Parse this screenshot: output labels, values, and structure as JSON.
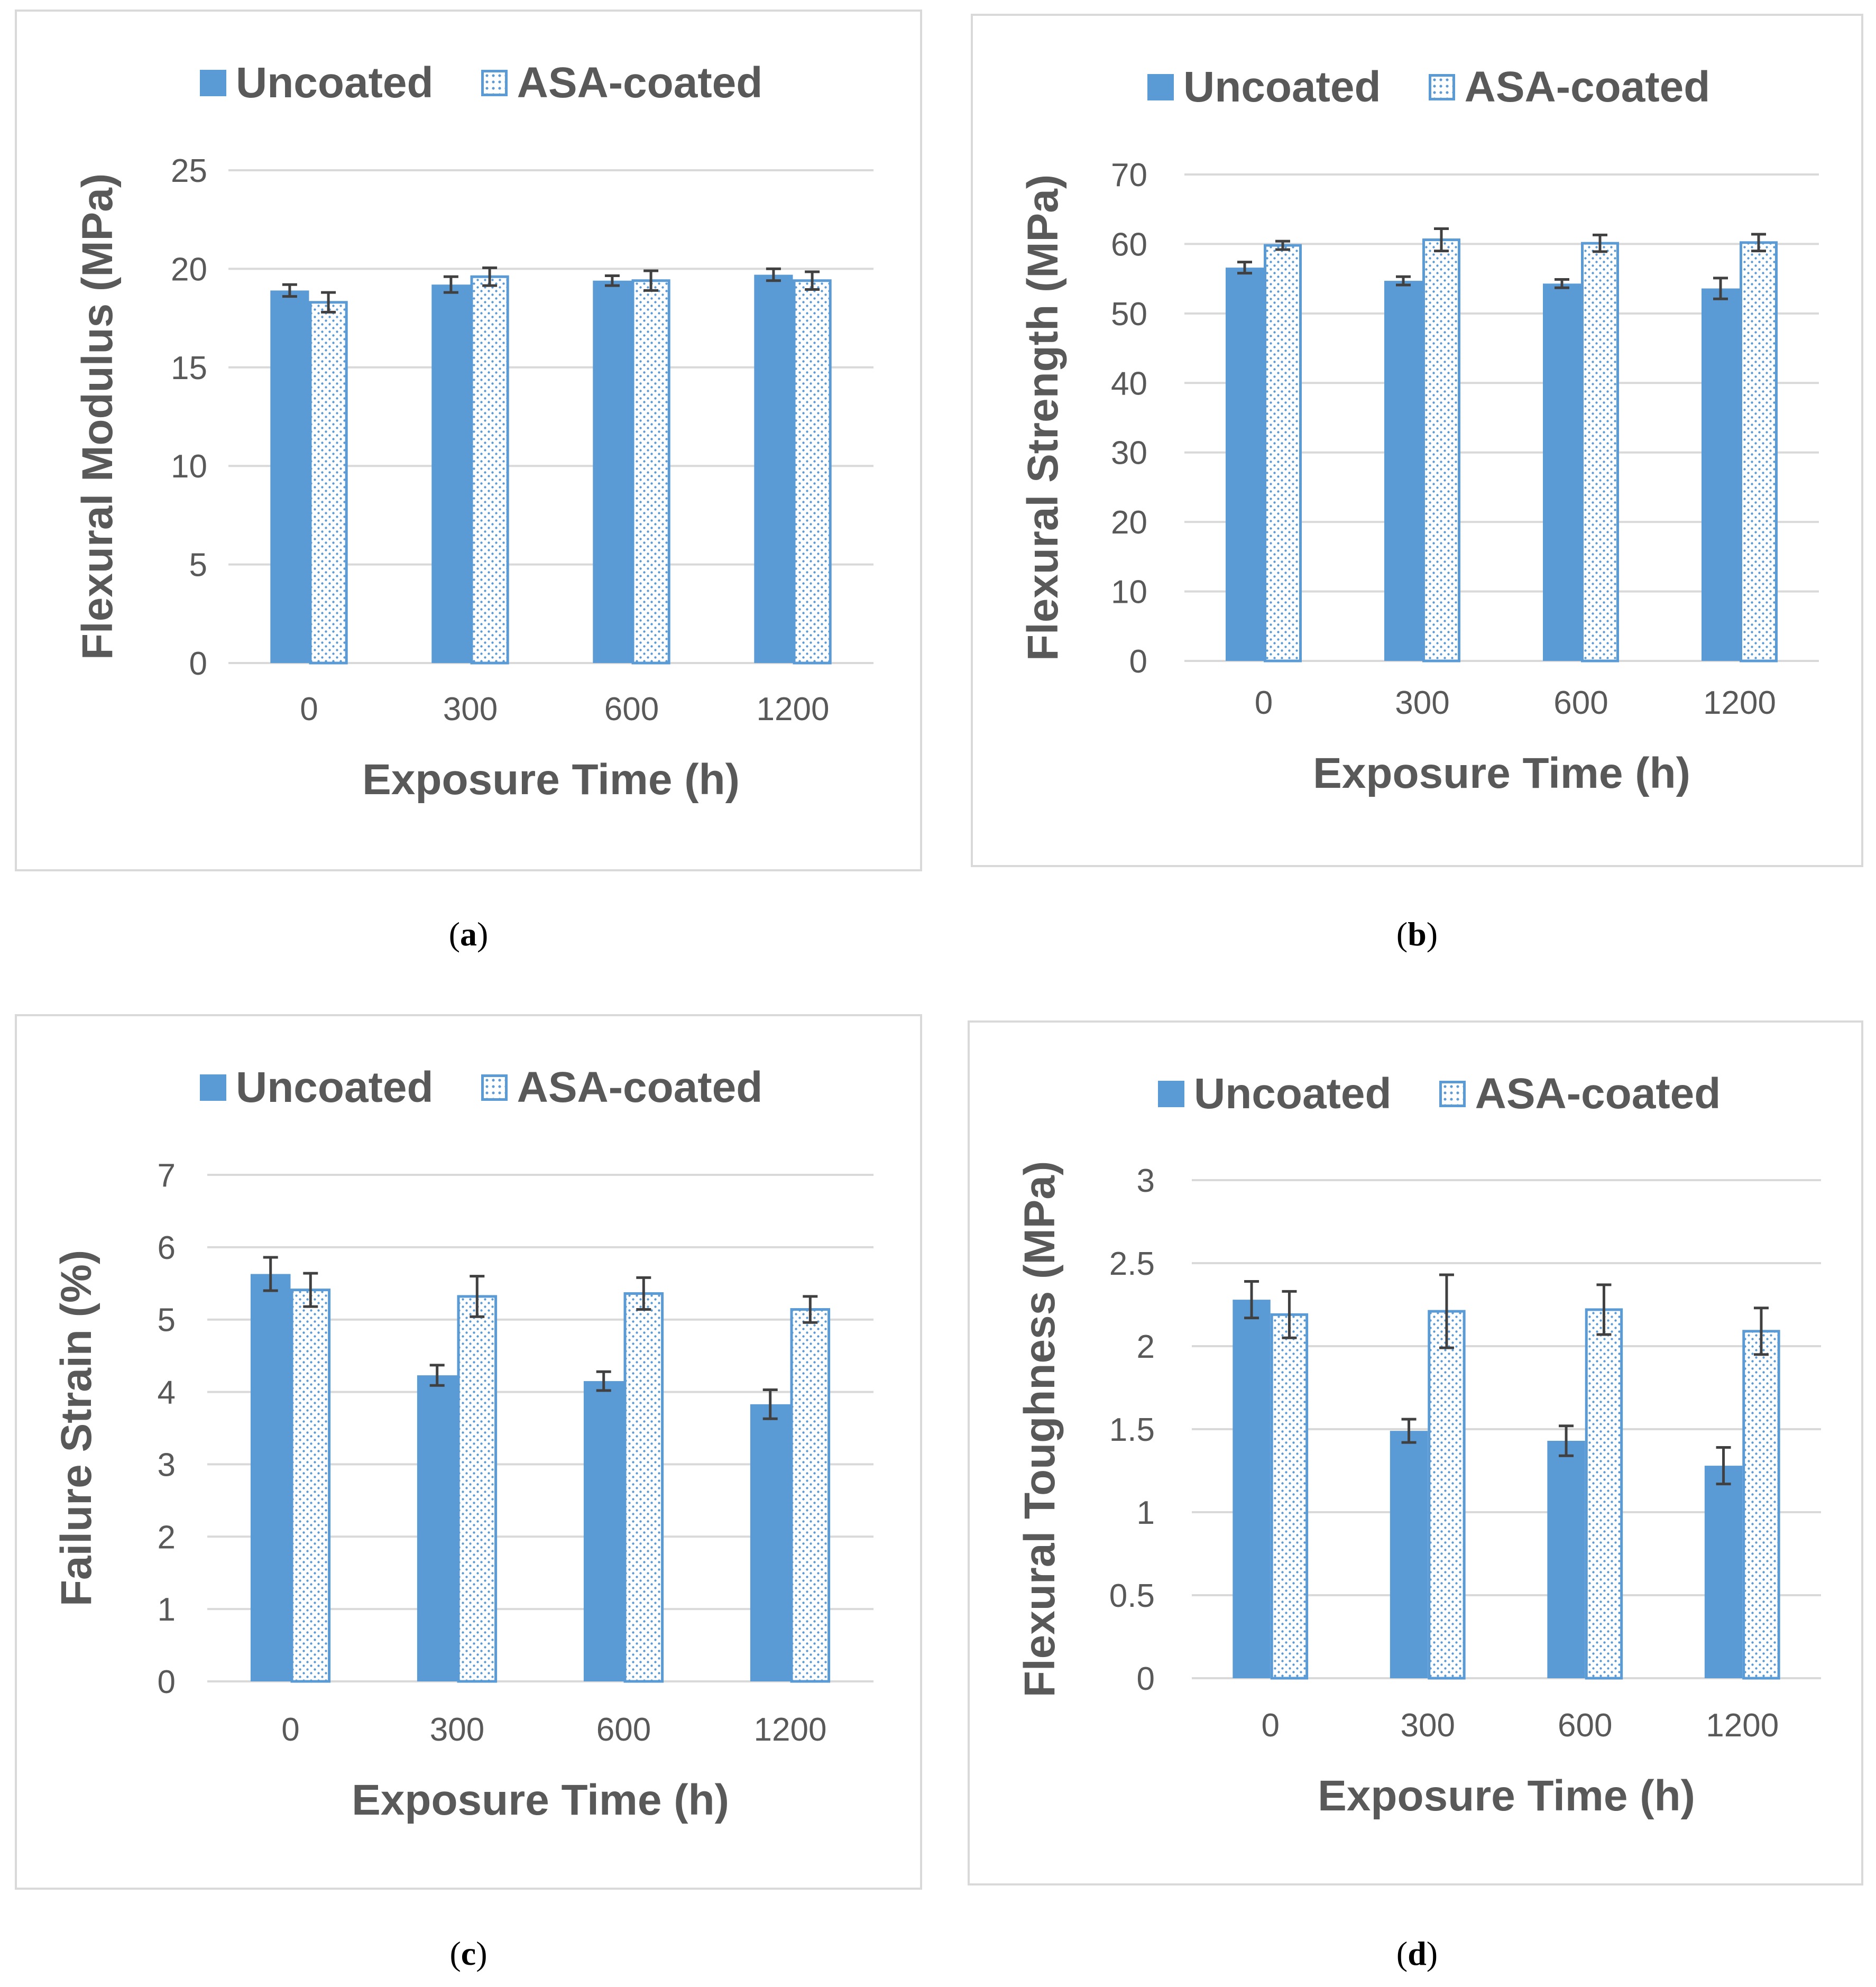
{
  "colors": {
    "uncoated": "#5b9bd5",
    "coated_border": "#5b9bd5",
    "grid": "#d9d9d9",
    "axis_text": "#595959",
    "error_bar": "#404040"
  },
  "legend": {
    "uncoated": "Uncoated",
    "coated": "ASA-coated"
  },
  "captions": {
    "a": "a",
    "b": "b",
    "c": "c",
    "d": "d"
  },
  "chart_data": [
    {
      "id": "a",
      "type": "bar",
      "title": "",
      "xlabel": "Exposure Time (h)",
      "ylabel": "Flexural Modulus (MPa)",
      "categories": [
        "0",
        "300",
        "600",
        "1200"
      ],
      "ylim": [
        0,
        25
      ],
      "yticks": [
        0,
        5,
        10,
        15,
        20,
        25
      ],
      "ytick_labels": [
        "0",
        "5",
        "10",
        "15",
        "20",
        "25"
      ],
      "grid": true,
      "legend_position": "top",
      "series": [
        {
          "name": "Uncoated",
          "values": [
            18.9,
            19.2,
            19.4,
            19.7
          ],
          "errors": [
            0.3,
            0.4,
            0.25,
            0.3
          ]
        },
        {
          "name": "ASA-coated",
          "values": [
            18.3,
            19.6,
            19.4,
            19.4
          ],
          "errors": [
            0.5,
            0.45,
            0.5,
            0.45
          ]
        }
      ]
    },
    {
      "id": "b",
      "type": "bar",
      "title": "",
      "xlabel": "Exposure Time (h)",
      "ylabel": "Flexural Strength (MPa)",
      "categories": [
        "0",
        "300",
        "600",
        "1200"
      ],
      "ylim": [
        0,
        70
      ],
      "yticks": [
        0,
        10,
        20,
        30,
        40,
        50,
        60,
        70
      ],
      "ytick_labels": [
        "0",
        "10",
        "20",
        "30",
        "40",
        "50",
        "60",
        "70"
      ],
      "grid": true,
      "legend_position": "top",
      "series": [
        {
          "name": "Uncoated",
          "values": [
            56.6,
            54.7,
            54.3,
            53.6
          ],
          "errors": [
            0.8,
            0.6,
            0.6,
            1.5
          ]
        },
        {
          "name": "ASA-coated",
          "values": [
            59.8,
            60.6,
            60.1,
            60.2
          ],
          "errors": [
            0.6,
            1.6,
            1.2,
            1.2
          ]
        }
      ]
    },
    {
      "id": "c",
      "type": "bar",
      "title": "",
      "xlabel": "Exposure Time (h)",
      "ylabel": "Failure Strain (%)",
      "categories": [
        "0",
        "300",
        "600",
        "1200"
      ],
      "ylim": [
        0,
        7
      ],
      "yticks": [
        0,
        1,
        2,
        3,
        4,
        5,
        6,
        7
      ],
      "ytick_labels": [
        "0",
        "1",
        "2",
        "3",
        "4",
        "5",
        "6",
        "7"
      ],
      "grid": true,
      "legend_position": "top",
      "series": [
        {
          "name": "Uncoated",
          "values": [
            5.63,
            4.23,
            4.15,
            3.83
          ],
          "errors": [
            0.23,
            0.14,
            0.13,
            0.2
          ]
        },
        {
          "name": "ASA-coated",
          "values": [
            5.41,
            5.32,
            5.36,
            5.14
          ],
          "errors": [
            0.23,
            0.28,
            0.22,
            0.18
          ]
        }
      ]
    },
    {
      "id": "d",
      "type": "bar",
      "title": "",
      "xlabel": "Exposure Time (h)",
      "ylabel": "Flexural Toughness (MPa)",
      "categories": [
        "0",
        "300",
        "600",
        "1200"
      ],
      "ylim": [
        0,
        3
      ],
      "yticks": [
        0,
        0.5,
        1,
        1.5,
        2,
        2.5,
        3
      ],
      "ytick_labels": [
        "0",
        "0.5",
        "1",
        "1.5",
        "2",
        "2.5",
        "3"
      ],
      "grid": true,
      "legend_position": "top",
      "series": [
        {
          "name": "Uncoated",
          "values": [
            2.28,
            1.49,
            1.43,
            1.28
          ],
          "errors": [
            0.11,
            0.07,
            0.09,
            0.11
          ]
        },
        {
          "name": "ASA-coated",
          "values": [
            2.19,
            2.21,
            2.22,
            2.09
          ],
          "errors": [
            0.14,
            0.22,
            0.15,
            0.14
          ]
        }
      ]
    }
  ]
}
